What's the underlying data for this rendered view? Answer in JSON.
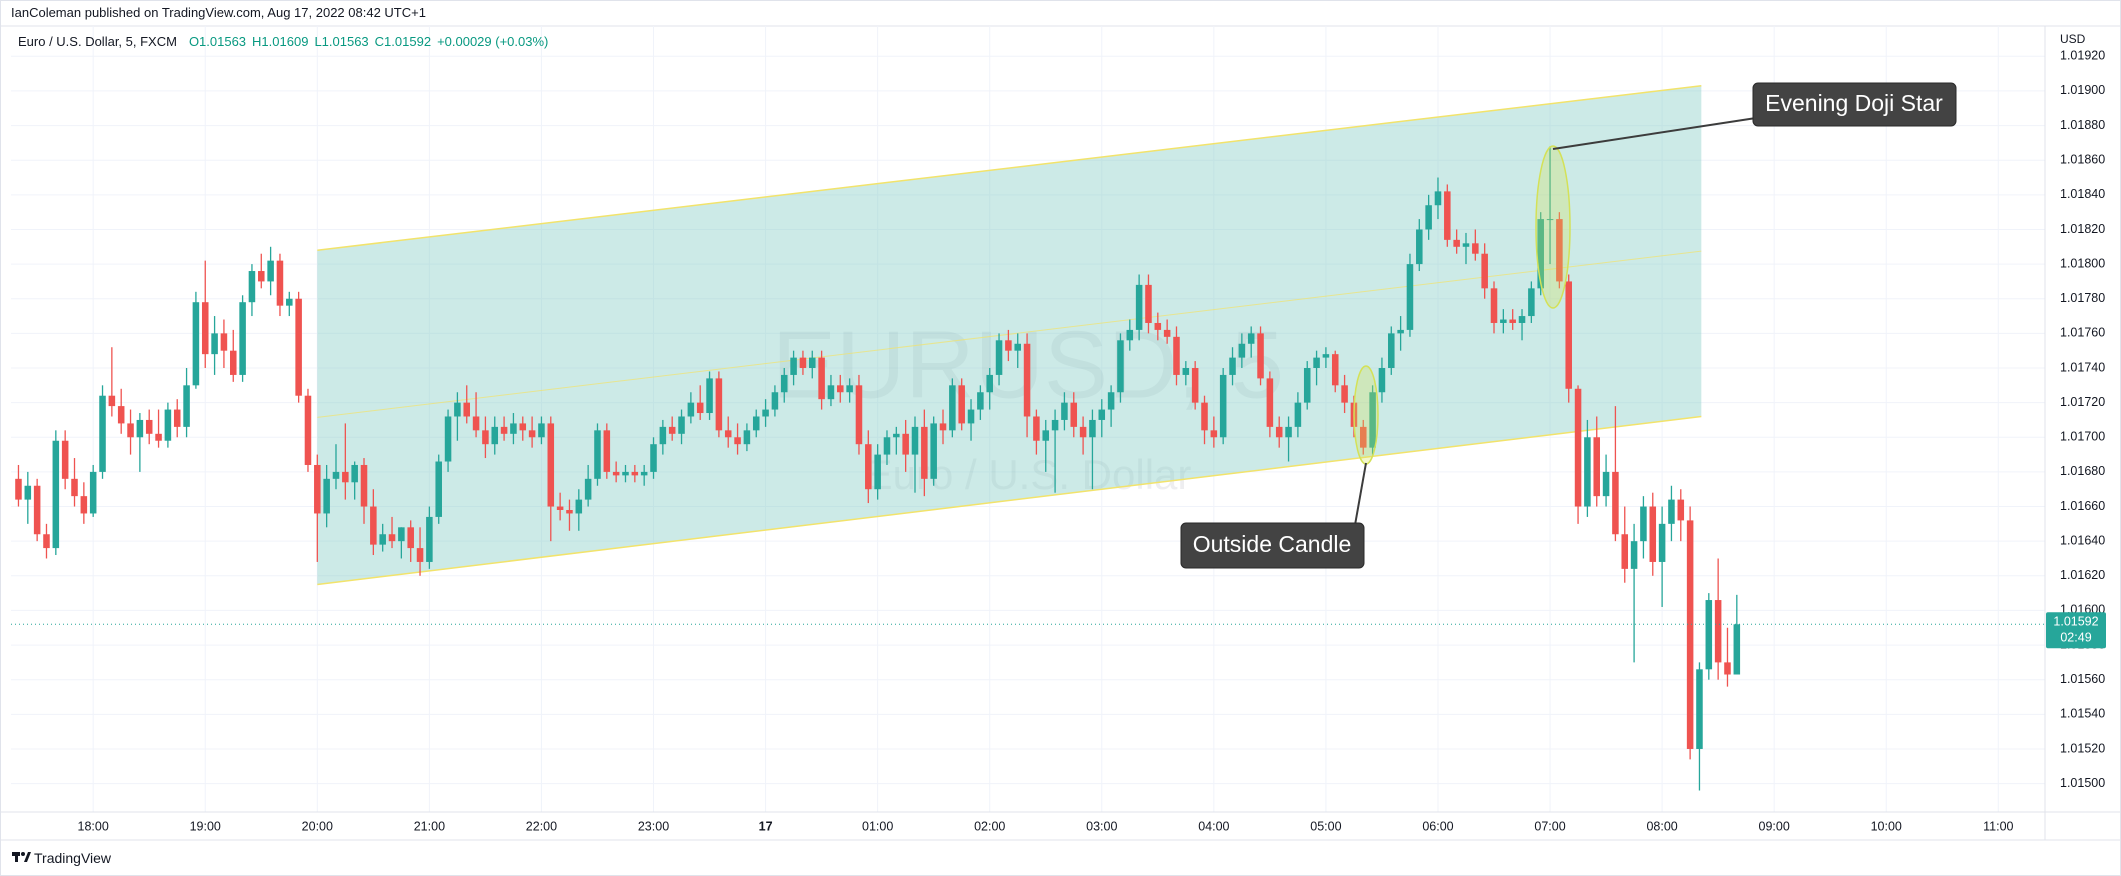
{
  "header": {
    "published": "IanColeman published on TradingView.com, Aug 17, 2022 08:42 UTC+1",
    "symbol": "Euro / U.S. Dollar, 5, FXCM",
    "ohlc": [
      "O1.01563",
      "H1.01609",
      "L1.01563",
      "C1.01592",
      "+0.00029 (+0.03%)"
    ]
  },
  "footer": {
    "brand": "TradingView"
  },
  "chart_data": {
    "type": "candlestick",
    "watermark": [
      "EURUSD, 5",
      "Euro / U.S. Dollar"
    ],
    "currency": "USD",
    "up_color": "#26a69a",
    "down_color": "#ef5350",
    "grid": true,
    "xlim": [
      1036,
      2125
    ],
    "xticks": [
      {
        "value": 1080,
        "label": "18:00"
      },
      {
        "value": 1140,
        "label": "19:00"
      },
      {
        "value": 1200,
        "label": "20:00"
      },
      {
        "value": 1260,
        "label": "21:00"
      },
      {
        "value": 1320,
        "label": "22:00"
      },
      {
        "value": 1380,
        "label": "23:00"
      },
      {
        "value": 1440,
        "label": "17"
      },
      {
        "value": 1500,
        "label": "01:00"
      },
      {
        "value": 1560,
        "label": "02:00"
      },
      {
        "value": 1620,
        "label": "03:00"
      },
      {
        "value": 1680,
        "label": "04:00"
      },
      {
        "value": 1740,
        "label": "05:00"
      },
      {
        "value": 1800,
        "label": "06:00"
      },
      {
        "value": 1860,
        "label": "07:00"
      },
      {
        "value": 1920,
        "label": "08:00"
      },
      {
        "value": 1980,
        "label": "09:00"
      },
      {
        "value": 2040,
        "label": "10:00"
      },
      {
        "value": 2100,
        "label": "11:00"
      }
    ],
    "ylim": [
      1.014836,
      1.019375
    ],
    "yticks": [
      {
        "value": 1.0192,
        "label": "1.01920"
      },
      {
        "value": 1.019,
        "label": "1.01900"
      },
      {
        "value": 1.0188,
        "label": "1.01880"
      },
      {
        "value": 1.0186,
        "label": "1.01860"
      },
      {
        "value": 1.0184,
        "label": "1.01840"
      },
      {
        "value": 1.0182,
        "label": "1.01820"
      },
      {
        "value": 1.018,
        "label": "1.01800"
      },
      {
        "value": 1.0178,
        "label": "1.01780"
      },
      {
        "value": 1.0176,
        "label": "1.01760"
      },
      {
        "value": 1.0174,
        "label": "1.01740"
      },
      {
        "value": 1.0172,
        "label": "1.01720"
      },
      {
        "value": 1.017,
        "label": "1.01700"
      },
      {
        "value": 1.0168,
        "label": "1.01680"
      },
      {
        "value": 1.0166,
        "label": "1.01660"
      },
      {
        "value": 1.0164,
        "label": "1.01640"
      },
      {
        "value": 1.0162,
        "label": "1.01620"
      },
      {
        "value": 1.016,
        "label": "1.01600"
      },
      {
        "value": 1.0158,
        "label": "1.01580"
      },
      {
        "value": 1.0156,
        "label": "1.01560"
      },
      {
        "value": 1.0154,
        "label": "1.01540"
      },
      {
        "value": 1.0152,
        "label": "1.01520"
      },
      {
        "value": 1.015,
        "label": "1.01500"
      }
    ],
    "last_price": {
      "value": 1.01592,
      "label": "1.01592"
    },
    "countdown": "02:49",
    "channel": {
      "x": [
        1200,
        1941
      ],
      "lower": [
        1.01615,
        1.01712
      ],
      "upper": [
        1.01808,
        1.01903
      ]
    },
    "annotations": [
      "Evening Doji Star",
      "Outside Candle"
    ],
    "x": [
      1040,
      1045,
      1050,
      1055,
      1060,
      1065,
      1070,
      1075,
      1080,
      1085,
      1090,
      1095,
      1100,
      1105,
      1110,
      1115,
      1120,
      1125,
      1130,
      1135,
      1140,
      1145,
      1150,
      1155,
      1160,
      1165,
      1170,
      1175,
      1180,
      1185,
      1190,
      1195,
      1200,
      1205,
      1210,
      1215,
      1220,
      1225,
      1230,
      1235,
      1240,
      1245,
      1250,
      1255,
      1260,
      1265,
      1270,
      1275,
      1280,
      1285,
      1290,
      1295,
      1300,
      1305,
      1310,
      1315,
      1320,
      1325,
      1330,
      1335,
      1340,
      1345,
      1350,
      1355,
      1360,
      1365,
      1370,
      1375,
      1380,
      1385,
      1390,
      1395,
      1400,
      1405,
      1410,
      1415,
      1420,
      1425,
      1430,
      1435,
      1440,
      1445,
      1450,
      1455,
      1460,
      1465,
      1470,
      1475,
      1480,
      1485,
      1490,
      1495,
      1500,
      1505,
      1510,
      1515,
      1520,
      1525,
      1530,
      1535,
      1540,
      1545,
      1550,
      1555,
      1560,
      1565,
      1570,
      1575,
      1580,
      1585,
      1590,
      1595,
      1600,
      1605,
      1610,
      1615,
      1620,
      1625,
      1630,
      1635,
      1640,
      1645,
      1650,
      1655,
      1660,
      1665,
      1670,
      1675,
      1680,
      1685,
      1690,
      1695,
      1700,
      1705,
      1710,
      1715,
      1720,
      1725,
      1730,
      1735,
      1740,
      1745,
      1750,
      1755,
      1760,
      1765,
      1770,
      1775,
      1780,
      1785,
      1790,
      1795,
      1800,
      1805,
      1810,
      1815,
      1820,
      1825,
      1830,
      1835,
      1840,
      1845,
      1850,
      1855,
      1860,
      1865,
      1870,
      1875,
      1880,
      1885,
      1890,
      1895,
      1900,
      1905,
      1910,
      1915,
      1920,
      1925,
      1930,
      1935,
      1940,
      1945,
      1950,
      1955,
      1960
    ],
    "open": [
      1.01676,
      1.01664,
      1.01672,
      1.01644,
      1.01636,
      1.01698,
      1.01676,
      1.01666,
      1.01656,
      1.0168,
      1.01724,
      1.01718,
      1.01708,
      1.017,
      1.0171,
      1.01702,
      1.01698,
      1.01716,
      1.01706,
      1.0173,
      1.01778,
      1.01748,
      1.0176,
      1.0175,
      1.01736,
      1.01778,
      1.01796,
      1.0179,
      1.01802,
      1.01776,
      1.0178,
      1.01724,
      1.01684,
      1.01656,
      1.01676,
      1.0168,
      1.01674,
      1.01684,
      1.0166,
      1.01638,
      1.01644,
      1.0164,
      1.01648,
      1.01636,
      1.01628,
      1.01654,
      1.01686,
      1.01712,
      1.0172,
      1.01712,
      1.01704,
      1.01696,
      1.01706,
      1.01702,
      1.01708,
      1.01704,
      1.017,
      1.01708,
      1.0166,
      1.01658,
      1.01656,
      1.01664,
      1.01676,
      1.01704,
      1.0168,
      1.01678,
      1.0168,
      1.01678,
      1.0168,
      1.01696,
      1.01706,
      1.01702,
      1.01712,
      1.0172,
      1.01714,
      1.01734,
      1.01704,
      1.017,
      1.01696,
      1.01704,
      1.01712,
      1.01716,
      1.01726,
      1.01736,
      1.01746,
      1.0174,
      1.01746,
      1.01722,
      1.0173,
      1.01726,
      1.0173,
      1.01696,
      1.0167,
      1.0169,
      1.017,
      1.01702,
      1.0169,
      1.01706,
      1.01676,
      1.01708,
      1.01704,
      1.0173,
      1.01708,
      1.01716,
      1.01726,
      1.01736,
      1.01756,
      1.0175,
      1.01754,
      1.01712,
      1.01698,
      1.01704,
      1.0171,
      1.0172,
      1.01706,
      1.017,
      1.0171,
      1.01716,
      1.01726,
      1.01756,
      1.01762,
      1.01788,
      1.01766,
      1.01762,
      1.01758,
      1.01736,
      1.0174,
      1.0172,
      1.01704,
      1.017,
      1.01736,
      1.01746,
      1.01754,
      1.0176,
      1.01734,
      1.01706,
      1.017,
      1.01706,
      1.0172,
      1.0174,
      1.01746,
      1.01748,
      1.0173,
      1.0172,
      1.01706,
      1.01694,
      1.01726,
      1.0174,
      1.0176,
      1.01762,
      1.018,
      1.0182,
      1.01834,
      1.01842,
      1.01814,
      1.0181,
      1.01812,
      1.01806,
      1.01786,
      1.01766,
      1.01768,
      1.01766,
      1.0177,
      1.01786,
      1.01826,
      1.01826,
      1.0179,
      1.01728,
      1.0166,
      1.017,
      1.01666,
      1.0168,
      1.01644,
      1.01624,
      1.0164,
      1.0166,
      1.01628,
      1.0165,
      1.01664,
      1.01652,
      1.0152,
      1.01566,
      1.01606,
      1.0157,
      1.01563
    ],
    "high": [
      1.01684,
      1.0168,
      1.01676,
      1.0165,
      1.01704,
      1.01704,
      1.01688,
      1.01674,
      1.01684,
      1.0173,
      1.01752,
      1.01728,
      1.01716,
      1.01714,
      1.01716,
      1.01716,
      1.0172,
      1.01722,
      1.0174,
      1.01784,
      1.01802,
      1.0177,
      1.01768,
      1.01762,
      1.01782,
      1.018,
      1.01806,
      1.0181,
      1.01806,
      1.01784,
      1.01784,
      1.01728,
      1.0169,
      1.01684,
      1.01696,
      1.01708,
      1.01686,
      1.01688,
      1.0167,
      1.0165,
      1.01654,
      1.01648,
      1.01652,
      1.01648,
      1.0166,
      1.0169,
      1.01716,
      1.01726,
      1.0173,
      1.01726,
      1.01712,
      1.01712,
      1.01712,
      1.01714,
      1.01712,
      1.01712,
      1.01712,
      1.01712,
      1.01668,
      1.01664,
      1.0167,
      1.01684,
      1.01708,
      1.01708,
      1.01686,
      1.01684,
      1.01684,
      1.01684,
      1.017,
      1.0171,
      1.01712,
      1.01716,
      1.01726,
      1.0173,
      1.01738,
      1.01738,
      1.01712,
      1.01708,
      1.01708,
      1.01716,
      1.01722,
      1.0173,
      1.0174,
      1.0175,
      1.0175,
      1.0175,
      1.0175,
      1.01736,
      1.01736,
      1.01734,
      1.01736,
      1.01704,
      1.01696,
      1.01704,
      1.01706,
      1.0171,
      1.01712,
      1.01716,
      1.01712,
      1.01716,
      1.01734,
      1.01734,
      1.01722,
      1.0173,
      1.0174,
      1.0176,
      1.01762,
      1.0176,
      1.0176,
      1.01716,
      1.0171,
      1.01716,
      1.01726,
      1.01726,
      1.01712,
      1.01716,
      1.01722,
      1.0173,
      1.0176,
      1.01768,
      1.01794,
      1.01794,
      1.01772,
      1.01768,
      1.01764,
      1.01744,
      1.01744,
      1.01724,
      1.01712,
      1.0174,
      1.01752,
      1.0176,
      1.01764,
      1.01764,
      1.01738,
      1.01712,
      1.01712,
      1.01726,
      1.01744,
      1.0175,
      1.01752,
      1.0175,
      1.01736,
      1.01724,
      1.0171,
      1.0173,
      1.01746,
      1.01764,
      1.0177,
      1.01806,
      1.01826,
      1.0184,
      1.0185,
      1.01846,
      1.0182,
      1.01818,
      1.0182,
      1.01812,
      1.0179,
      1.01774,
      1.01774,
      1.01774,
      1.0179,
      1.0183,
      1.01868,
      1.0183,
      1.01794,
      1.0173,
      1.0171,
      1.01712,
      1.0169,
      1.01718,
      1.0166,
      1.0165,
      1.01666,
      1.01668,
      1.0166,
      1.01672,
      1.0167,
      1.0166,
      1.0157,
      1.0161,
      1.0163,
      1.0159,
      1.01609
    ],
    "low": [
      1.0166,
      1.0165,
      1.0164,
      1.0163,
      1.01632,
      1.0167,
      1.0166,
      1.0165,
      1.01654,
      1.01676,
      1.01712,
      1.01702,
      1.0169,
      1.0168,
      1.01696,
      1.01694,
      1.01694,
      1.017,
      1.017,
      1.01728,
      1.0174,
      1.01736,
      1.0174,
      1.01732,
      1.01732,
      1.0177,
      1.01786,
      1.01782,
      1.0177,
      1.0177,
      1.0172,
      1.0168,
      1.01628,
      1.01648,
      1.0167,
      1.01664,
      1.01664,
      1.0165,
      1.01632,
      1.01634,
      1.01636,
      1.0163,
      1.01628,
      1.0162,
      1.01624,
      1.0165,
      1.0168,
      1.01698,
      1.01708,
      1.017,
      1.01688,
      1.0169,
      1.01698,
      1.01696,
      1.01698,
      1.01694,
      1.01696,
      1.0164,
      1.01652,
      1.01646,
      1.01646,
      1.0166,
      1.01672,
      1.01676,
      1.01674,
      1.01674,
      1.01674,
      1.01672,
      1.01676,
      1.0169,
      1.01698,
      1.01696,
      1.01708,
      1.0171,
      1.0171,
      1.017,
      1.01694,
      1.0169,
      1.01692,
      1.017,
      1.01706,
      1.01712,
      1.0172,
      1.0173,
      1.01736,
      1.01734,
      1.01716,
      1.01718,
      1.0172,
      1.0172,
      1.0169,
      1.01662,
      1.01664,
      1.01684,
      1.0169,
      1.0168,
      1.01668,
      1.01666,
      1.01672,
      1.01696,
      1.017,
      1.01704,
      1.01698,
      1.0171,
      1.01716,
      1.0173,
      1.01744,
      1.0174,
      1.017,
      1.0169,
      1.0168,
      1.01668,
      1.01704,
      1.017,
      1.0169,
      1.0167,
      1.017,
      1.01706,
      1.0172,
      1.0175,
      1.01756,
      1.0176,
      1.01756,
      1.01754,
      1.0173,
      1.0173,
      1.01716,
      1.01696,
      1.01694,
      1.01696,
      1.0173,
      1.0174,
      1.01746,
      1.0173,
      1.017,
      1.01694,
      1.01686,
      1.017,
      1.01716,
      1.0173,
      1.0174,
      1.01726,
      1.01714,
      1.017,
      1.0169,
      1.0169,
      1.0172,
      1.01736,
      1.0175,
      1.01758,
      1.01796,
      1.01814,
      1.01826,
      1.0181,
      1.01806,
      1.018,
      1.01802,
      1.0178,
      1.0176,
      1.0176,
      1.01762,
      1.01756,
      1.01766,
      1.01782,
      1.018,
      1.01786,
      1.0172,
      1.0165,
      1.01654,
      1.0166,
      1.0166,
      1.0164,
      1.01616,
      1.0157,
      1.0163,
      1.0162,
      1.01602,
      1.0164,
      1.0164,
      1.01514,
      1.01496,
      1.0156,
      1.0156,
      1.01556,
      1.01563
    ],
    "close": [
      1.01664,
      1.01672,
      1.01644,
      1.01636,
      1.01698,
      1.01676,
      1.01666,
      1.01656,
      1.0168,
      1.01724,
      1.01718,
      1.01708,
      1.017,
      1.0171,
      1.01702,
      1.01698,
      1.01716,
      1.01706,
      1.0173,
      1.01778,
      1.01748,
      1.0176,
      1.0175,
      1.01736,
      1.01778,
      1.01796,
      1.0179,
      1.01802,
      1.01776,
      1.0178,
      1.01724,
      1.01684,
      1.01656,
      1.01676,
      1.0168,
      1.01674,
      1.01684,
      1.0166,
      1.01638,
      1.01644,
      1.0164,
      1.01648,
      1.01636,
      1.01628,
      1.01654,
      1.01686,
      1.01712,
      1.0172,
      1.01712,
      1.01704,
      1.01696,
      1.01706,
      1.01702,
      1.01708,
      1.01704,
      1.017,
      1.01708,
      1.0166,
      1.01658,
      1.01656,
      1.01664,
      1.01676,
      1.01704,
      1.0168,
      1.01678,
      1.0168,
      1.01678,
      1.0168,
      1.01696,
      1.01706,
      1.01702,
      1.01712,
      1.0172,
      1.01714,
      1.01734,
      1.01704,
      1.017,
      1.01696,
      1.01704,
      1.01712,
      1.01716,
      1.01726,
      1.01736,
      1.01746,
      1.0174,
      1.01746,
      1.01722,
      1.0173,
      1.01726,
      1.0173,
      1.01696,
      1.0167,
      1.0169,
      1.017,
      1.01702,
      1.0169,
      1.01706,
      1.01676,
      1.01708,
      1.01704,
      1.0173,
      1.01708,
      1.01716,
      1.01726,
      1.01736,
      1.01756,
      1.0175,
      1.01754,
      1.01712,
      1.01698,
      1.01704,
      1.0171,
      1.0172,
      1.01706,
      1.017,
      1.0171,
      1.01716,
      1.01726,
      1.01756,
      1.01762,
      1.01788,
      1.01766,
      1.01762,
      1.01758,
      1.01736,
      1.0174,
      1.0172,
      1.01704,
      1.017,
      1.01736,
      1.01746,
      1.01754,
      1.0176,
      1.01734,
      1.01706,
      1.017,
      1.01706,
      1.0172,
      1.0174,
      1.01746,
      1.01748,
      1.0173,
      1.0172,
      1.01706,
      1.01694,
      1.01726,
      1.0174,
      1.0176,
      1.01762,
      1.018,
      1.0182,
      1.01834,
      1.01842,
      1.01814,
      1.0181,
      1.01812,
      1.01806,
      1.01786,
      1.01766,
      1.01768,
      1.01766,
      1.0177,
      1.01786,
      1.01826,
      1.01826,
      1.0179,
      1.01728,
      1.0166,
      1.017,
      1.01666,
      1.0168,
      1.01644,
      1.01624,
      1.0164,
      1.0166,
      1.01628,
      1.0165,
      1.01664,
      1.01652,
      1.0152,
      1.01566,
      1.01606,
      1.0157,
      1.01563,
      1.01592
    ]
  }
}
